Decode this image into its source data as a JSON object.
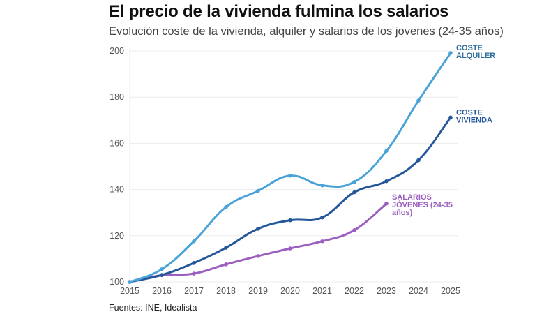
{
  "header": {
    "title": "El precio de la vivienda fulmina los salarios",
    "subtitle": "Evolución coste de la vivienda, alquiler y salarios de los jovenes (24-35 años)"
  },
  "footer": {
    "source": "Fuentes: INE, Idealista"
  },
  "chart_data": {
    "type": "line",
    "title": "El precio de la vivienda fulmina los salarios",
    "subtitle": "Evolución coste de la vivienda, alquiler y salarios de los jovenes (24-35 años)",
    "xlabel": "",
    "ylabel": "",
    "x": [
      2015,
      2016,
      2017,
      2018,
      2019,
      2020,
      2021,
      2022,
      2023,
      2024,
      2025
    ],
    "ylim": [
      100,
      200
    ],
    "yticks": [
      100,
      120,
      140,
      160,
      180,
      200
    ],
    "grid": true,
    "legend": "inline-end-labels",
    "series": [
      {
        "name": "COSTE ALQUILER",
        "label_lines": [
          "COSTE",
          "ALQUILER"
        ],
        "color": "#4aa3d8",
        "label_color": "#2e6f9e",
        "values": [
          100,
          105.5,
          117.6,
          132.4,
          139.4,
          146,
          141.8,
          143.3,
          156.7,
          178.5,
          199.1
        ]
      },
      {
        "name": "COSTE VIVIENDA",
        "label_lines": [
          "COSTE",
          "VIVIENDA"
        ],
        "color": "#24579a",
        "label_color": "#24579a",
        "values": [
          100,
          103,
          108.2,
          114.8,
          123,
          126.7,
          127.9,
          138.8,
          143.6,
          152.7,
          171.2
        ]
      },
      {
        "name": "SALARIOS JÓVENES (24-35 años)",
        "label_lines": [
          "SALARIOS",
          "JÓVENES (24-35",
          "años)"
        ],
        "color": "#9b5fc0",
        "label_color": "#9b5fc0",
        "values": [
          100,
          102.9,
          103.6,
          107.6,
          111.2,
          114.5,
          117.6,
          122.4,
          133.9,
          null,
          null
        ]
      }
    ]
  }
}
